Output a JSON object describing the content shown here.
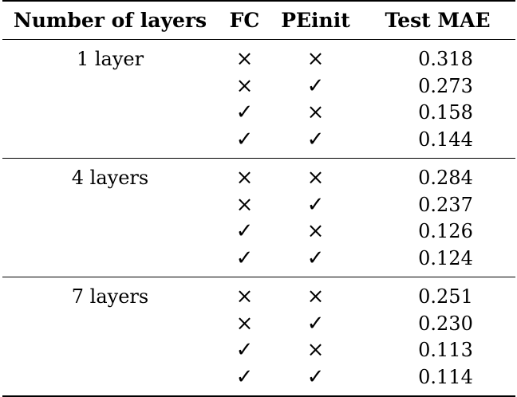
{
  "headers": [
    "Number of layers",
    "FC",
    "PEinit",
    "Test MAE"
  ],
  "groups": [
    {
      "label": "1 layer",
      "rows": [
        {
          "fc": "×",
          "peinit": "×",
          "mae": "0.318"
        },
        {
          "fc": "×",
          "peinit": "✓",
          "mae": "0.273"
        },
        {
          "fc": "✓",
          "peinit": "×",
          "mae": "0.158"
        },
        {
          "fc": "✓",
          "peinit": "✓",
          "mae": "0.144"
        }
      ]
    },
    {
      "label": "4 layers",
      "rows": [
        {
          "fc": "×",
          "peinit": "×",
          "mae": "0.284"
        },
        {
          "fc": "×",
          "peinit": "✓",
          "mae": "0.237"
        },
        {
          "fc": "✓",
          "peinit": "×",
          "mae": "0.126"
        },
        {
          "fc": "✓",
          "peinit": "✓",
          "mae": "0.124"
        }
      ]
    },
    {
      "label": "7 layers",
      "rows": [
        {
          "fc": "×",
          "peinit": "×",
          "mae": "0.251"
        },
        {
          "fc": "×",
          "peinit": "✓",
          "mae": "0.230"
        },
        {
          "fc": "✓",
          "peinit": "×",
          "mae": "0.113"
        },
        {
          "fc": "✓",
          "peinit": "✓",
          "mae": "0.114"
        }
      ]
    }
  ]
}
